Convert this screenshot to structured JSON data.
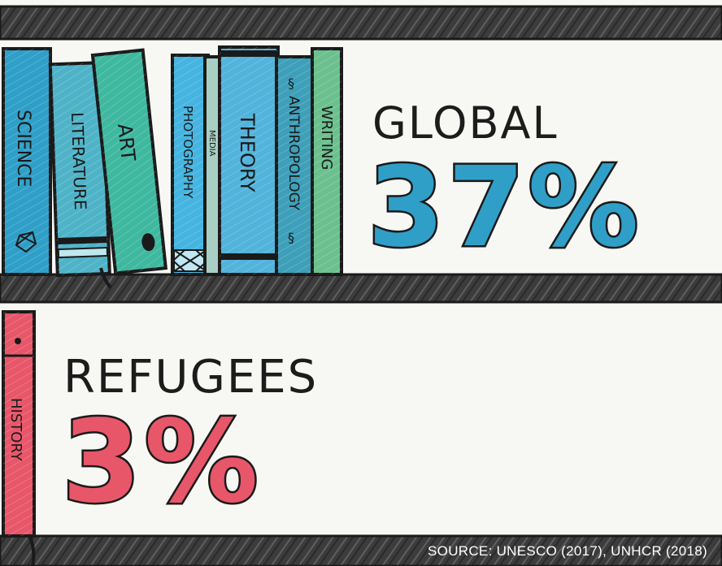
{
  "books_top": [
    {
      "title": "SCIENCE",
      "color": "#2f9fc8",
      "icon": "network-icon"
    },
    {
      "title": "LITERATURE",
      "color": "#4fb3c8",
      "icon": "bands-icon"
    },
    {
      "title": "ART",
      "color": "#3fb8a0",
      "icon": "dot-icon"
    },
    {
      "title": "PHOTOGRAPHY",
      "color": "#45b4e0",
      "icon": "lattice-icon"
    },
    {
      "title": "MEDIA",
      "color": "#a9cfc4",
      "icon": ""
    },
    {
      "title": "THEORY",
      "color": "#52b3db",
      "icon": ""
    },
    {
      "title": "ANTHROPOLOGY",
      "color": "#3d9fb9",
      "icon": "swirl-icon"
    },
    {
      "title": "WRITING",
      "color": "#6cc08e",
      "icon": ""
    }
  ],
  "book_bottom": {
    "title": "HISTORY",
    "color": "#e8566a"
  },
  "global": {
    "label": "GLOBAL",
    "value": "37%",
    "color": "#2f9fc8"
  },
  "refugees": {
    "label": "REFUGEES",
    "value": "3%",
    "color": "#e8566a"
  },
  "source": "SOURCE: UNESCO (2017), UNHCR (2018)",
  "colors": {
    "shelf": "#3a3a3a",
    "ink": "#1a1a1a",
    "background": "#f7f7f3"
  }
}
